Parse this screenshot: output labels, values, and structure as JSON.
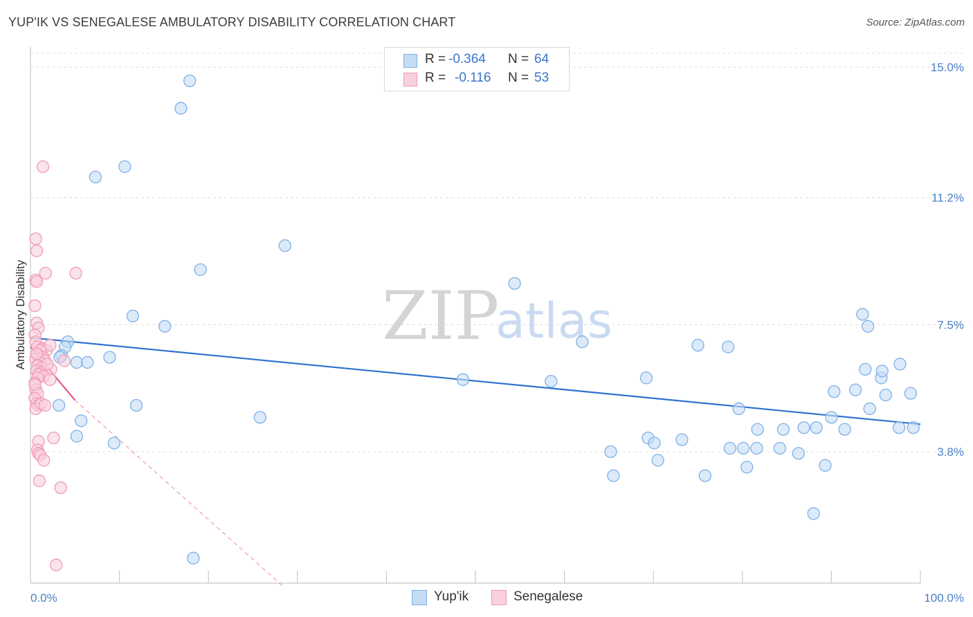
{
  "header": {
    "title": "YUP'IK VS SENEGALESE AMBULATORY DISABILITY CORRELATION CHART",
    "source": "Source: ZipAtlas.com"
  },
  "watermark": {
    "zip": "ZIP",
    "atlas": "atlas"
  },
  "stats": {
    "r_label": "R =",
    "n_label": "N =",
    "rows": [
      {
        "r": "-0.364",
        "n": "64"
      },
      {
        "r": "-0.116",
        "n": "53"
      }
    ]
  },
  "legend": {
    "items": [
      "Yup'ik",
      "Senegalese"
    ]
  },
  "chart_data": {
    "type": "scatter",
    "title": "YUP'IK VS SENEGALESE AMBULATORY DISABILITY CORRELATION CHART",
    "xlabel": "",
    "ylabel": "Ambulatory Disability",
    "xlim": [
      0,
      100
    ],
    "ylim": [
      0,
      15.5
    ],
    "x_tick_labels": [
      "0.0%",
      "100.0%"
    ],
    "y_ticks": [
      3.8,
      7.5,
      11.2,
      15.0
    ],
    "y_tick_labels": [
      "3.8%",
      "7.5%",
      "11.2%",
      "15.0%"
    ],
    "grid": true,
    "series": [
      {
        "name": "Yup'ik",
        "color": "#7fb0e6",
        "fill": "#c5dcf5",
        "trend_color": "#2f72cf",
        "r": -0.364,
        "n": 64,
        "trend": {
          "x": [
            0,
            100
          ],
          "y": [
            7.12,
            4.6
          ]
        },
        "points": [
          [
            17.9,
            14.6
          ],
          [
            16.9,
            13.8
          ],
          [
            10.6,
            12.1
          ],
          [
            7.3,
            11.8
          ],
          [
            28.6,
            9.8
          ],
          [
            19.1,
            9.1
          ],
          [
            11.5,
            7.75
          ],
          [
            15.1,
            7.45
          ],
          [
            4.2,
            7.0
          ],
          [
            3.9,
            6.85
          ],
          [
            3.5,
            6.6
          ],
          [
            3.3,
            6.55
          ],
          [
            8.9,
            6.55
          ],
          [
            5.2,
            6.4
          ],
          [
            6.4,
            6.4
          ],
          [
            3.2,
            5.15
          ],
          [
            11.9,
            5.15
          ],
          [
            5.7,
            4.7
          ],
          [
            25.8,
            4.8
          ],
          [
            5.2,
            4.25
          ],
          [
            9.4,
            4.05
          ],
          [
            18.3,
            0.7
          ],
          [
            48.6,
            5.9
          ],
          [
            58.5,
            5.85
          ],
          [
            65.2,
            3.8
          ],
          [
            69.4,
            4.2
          ],
          [
            70.1,
            4.05
          ],
          [
            70.5,
            3.55
          ],
          [
            62.0,
            7.0
          ],
          [
            75.0,
            6.9
          ],
          [
            73.2,
            4.15
          ],
          [
            75.8,
            3.1
          ],
          [
            69.2,
            5.95
          ],
          [
            78.4,
            6.85
          ],
          [
            78.6,
            3.9
          ],
          [
            79.6,
            5.05
          ],
          [
            80.5,
            3.35
          ],
          [
            81.6,
            3.9
          ],
          [
            84.6,
            4.45
          ],
          [
            84.2,
            3.9
          ],
          [
            86.9,
            4.5
          ],
          [
            86.3,
            3.75
          ],
          [
            88.3,
            4.5
          ],
          [
            88.0,
            2.0
          ],
          [
            89.3,
            3.4
          ],
          [
            90.0,
            4.8
          ],
          [
            92.7,
            5.6
          ],
          [
            93.5,
            7.8
          ],
          [
            93.8,
            6.2
          ],
          [
            94.3,
            5.05
          ],
          [
            94.1,
            7.45
          ],
          [
            95.6,
            5.95
          ],
          [
            95.7,
            6.15
          ],
          [
            96.1,
            5.45
          ],
          [
            97.7,
            6.35
          ],
          [
            97.6,
            4.5
          ],
          [
            98.9,
            5.5
          ],
          [
            99.2,
            4.5
          ],
          [
            54.4,
            8.7
          ],
          [
            65.5,
            3.1
          ],
          [
            90.3,
            5.55
          ],
          [
            91.5,
            4.45
          ],
          [
            80.1,
            3.9
          ],
          [
            81.7,
            4.45
          ]
        ]
      },
      {
        "name": "Senegalese",
        "color": "#f09ab7",
        "fill": "#f9d0de",
        "trend_color": "#e55588",
        "r": -0.116,
        "n": 53,
        "trend": {
          "x": [
            0,
            5.0
          ],
          "y": [
            6.85,
            5.3
          ]
        },
        "trend_extension": {
          "x": [
            5.0,
            28.3
          ],
          "y": [
            5.3,
            -0.1
          ]
        },
        "points": [
          [
            1.4,
            12.1
          ],
          [
            0.6,
            10.0
          ],
          [
            0.7,
            9.65
          ],
          [
            0.6,
            8.8
          ],
          [
            0.7,
            8.75
          ],
          [
            1.7,
            9.0
          ],
          [
            5.1,
            9.0
          ],
          [
            0.5,
            8.05
          ],
          [
            0.7,
            7.55
          ],
          [
            0.9,
            7.4
          ],
          [
            0.5,
            7.2
          ],
          [
            0.6,
            7.0
          ],
          [
            0.8,
            6.85
          ],
          [
            1.3,
            6.8
          ],
          [
            1.8,
            6.75
          ],
          [
            2.2,
            6.9
          ],
          [
            1.1,
            6.75
          ],
          [
            0.9,
            6.6
          ],
          [
            0.6,
            6.5
          ],
          [
            1.4,
            6.55
          ],
          [
            1.6,
            6.45
          ],
          [
            1.0,
            6.4
          ],
          [
            0.8,
            6.3
          ],
          [
            1.3,
            6.25
          ],
          [
            2.3,
            6.2
          ],
          [
            3.8,
            6.45
          ],
          [
            0.7,
            6.15
          ],
          [
            1.2,
            6.1
          ],
          [
            0.9,
            6.05
          ],
          [
            1.5,
            6.0
          ],
          [
            0.8,
            5.95
          ],
          [
            2.2,
            5.9
          ],
          [
            0.5,
            5.8
          ],
          [
            0.6,
            5.6
          ],
          [
            0.8,
            5.5
          ],
          [
            0.5,
            5.35
          ],
          [
            0.7,
            5.2
          ],
          [
            0.9,
            5.15
          ],
          [
            0.6,
            5.05
          ],
          [
            1.2,
            5.2
          ],
          [
            1.6,
            5.15
          ],
          [
            2.6,
            4.2
          ],
          [
            0.9,
            4.1
          ],
          [
            0.8,
            3.85
          ],
          [
            0.9,
            3.75
          ],
          [
            1.1,
            3.7
          ],
          [
            1.5,
            3.55
          ],
          [
            1.0,
            2.95
          ],
          [
            3.4,
            2.75
          ],
          [
            2.9,
            0.5
          ],
          [
            0.7,
            6.65
          ],
          [
            1.9,
            6.35
          ],
          [
            0.5,
            5.75
          ]
        ]
      }
    ]
  }
}
